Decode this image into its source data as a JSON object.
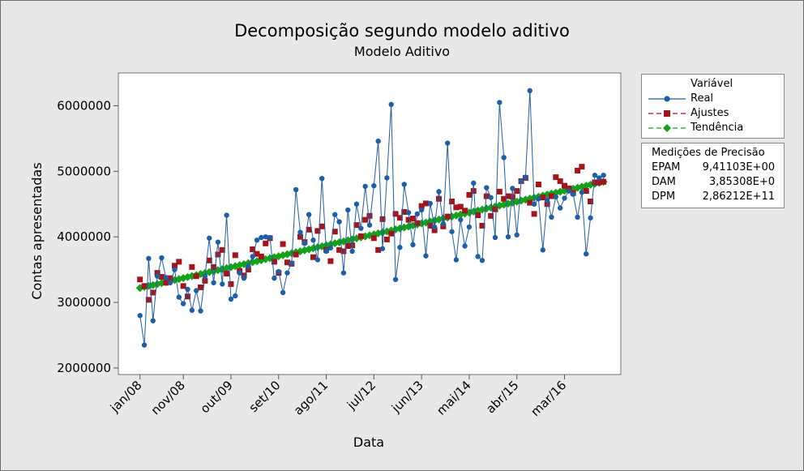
{
  "chart_data": {
    "type": "line",
    "title": "Decomposição segundo modelo aditivo",
    "subtitle": "Modelo Aditivo",
    "xlabel": "Data",
    "ylabel": "Contas apresentadas",
    "ylim": [
      1900000,
      6500000
    ],
    "yticks": [
      2000000,
      3000000,
      4000000,
      5000000,
      6000000
    ],
    "ytick_labels": [
      "2000000",
      "3000000",
      "4000000",
      "5000000",
      "6000000"
    ],
    "x_range": [
      -4,
      112
    ],
    "x_start": "jan/08",
    "n_periods": 108,
    "xticks": [
      {
        "label": "jan/08",
        "period": 1
      },
      {
        "label": "nov/08",
        "period": 11
      },
      {
        "label": "out/09",
        "period": 22
      },
      {
        "label": "set/10",
        "period": 33
      },
      {
        "label": "ago/11",
        "period": 44
      },
      {
        "label": "jul/12",
        "period": 55
      },
      {
        "label": "jun/13",
        "period": 66
      },
      {
        "label": "mai/14",
        "period": 77
      },
      {
        "label": "abr/15",
        "period": 88
      },
      {
        "label": "mar/16",
        "period": 99
      }
    ],
    "grid": false,
    "legend_position": "right",
    "legend_title": "Variável",
    "series": [
      {
        "name": "Real",
        "color": "#1f5fa6",
        "marker": "circle",
        "linestyle": "solid",
        "values": [
          2800000,
          2350000,
          3670000,
          2720000,
          3400000,
          3680000,
          3380000,
          3300000,
          3500000,
          3080000,
          2980000,
          3200000,
          2880000,
          3180000,
          2870000,
          3400000,
          3980000,
          3300000,
          3920000,
          3280000,
          4330000,
          3050000,
          3100000,
          3450000,
          3370000,
          3550000,
          3700000,
          3950000,
          3990000,
          4000000,
          3990000,
          3370000,
          3470000,
          3150000,
          3450000,
          3600000,
          4720000,
          4070000,
          3900000,
          4340000,
          3950000,
          3650000,
          4890000,
          3780000,
          3830000,
          4340000,
          4230000,
          3450000,
          4410000,
          3780000,
          4500000,
          4130000,
          4770000,
          4180000,
          4780000,
          5460000,
          3820000,
          4900000,
          6020000,
          3350000,
          3840000,
          4800000,
          4370000,
          3880000,
          4350000,
          4410000,
          3710000,
          4510000,
          4150000,
          4690000,
          4200000,
          5430000,
          4080000,
          3650000,
          4260000,
          3860000,
          4150000,
          4820000,
          3700000,
          3640000,
          4750000,
          4600000,
          3990000,
          6050000,
          5210000,
          4000000,
          4740000,
          4030000,
          4850000,
          4910000,
          6230000,
          4500000,
          4580000,
          3800000,
          4560000,
          4300000,
          4610000,
          4440000,
          4590000,
          4700000,
          4650000,
          4300000,
          4680000,
          3740000,
          4290000,
          4940000,
          4900000,
          4940000
        ]
      },
      {
        "name": "Ajustes",
        "color": "#a3151b",
        "marker": "square",
        "linestyle": "dashed",
        "values": [
          3350000,
          3250000,
          3040000,
          3150000,
          3450000,
          3390000,
          3300000,
          3370000,
          3560000,
          3620000,
          3250000,
          3090000,
          3540000,
          3400000,
          3230000,
          3330000,
          3640000,
          3540000,
          3730000,
          3800000,
          3440000,
          3280000,
          3720000,
          3480000,
          3410000,
          3500000,
          3810000,
          3740000,
          3700000,
          3900000,
          3980000,
          3620000,
          3450000,
          3890000,
          3610000,
          3590000,
          3730000,
          4000000,
          3920000,
          4110000,
          3690000,
          4090000,
          4160000,
          3800000,
          3630000,
          4080000,
          3800000,
          3780000,
          3860000,
          3870000,
          4180000,
          4010000,
          4260000,
          4320000,
          3980000,
          3800000,
          4270000,
          3960000,
          4050000,
          4350000,
          4290000,
          4380000,
          4260000,
          4280000,
          4210000,
          4470000,
          4510000,
          4170000,
          4100000,
          4580000,
          4160000,
          4310000,
          4540000,
          4450000,
          4460000,
          4400000,
          4640000,
          4700000,
          4330000,
          4170000,
          4620000,
          4320000,
          4420000,
          4690000,
          4580000,
          4620000,
          4610000,
          4700000,
          4850000,
          4900000,
          4520000,
          4350000,
          4800000,
          4600000,
          4500000,
          4620000,
          4910000,
          4850000,
          4780000,
          4740000,
          4670000,
          5010000,
          5070000,
          4700000,
          4540000,
          4830000,
          4830000,
          4840000
        ]
      },
      {
        "name": "Tendência",
        "color": "#15a11a",
        "marker": "diamond",
        "linestyle": "dashed",
        "start": 3220000,
        "end": 4840000
      }
    ]
  },
  "accuracy": {
    "title": "Medições de Precisão",
    "rows": [
      {
        "name": "EPAM",
        "value": "9,41103E+00"
      },
      {
        "name": "DAM",
        "value": "3,85308E+0"
      },
      {
        "name": "DPM",
        "value": "2,86212E+11"
      }
    ]
  },
  "legend": {
    "title": "Variável",
    "items": [
      "Real",
      "Ajustes",
      "Tendência"
    ]
  }
}
